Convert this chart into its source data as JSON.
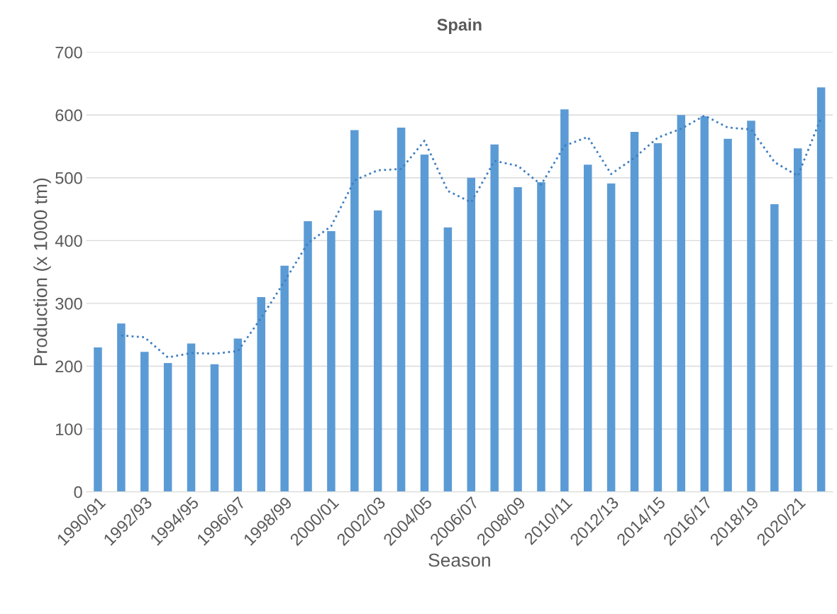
{
  "chart_data": {
    "type": "bar",
    "title": "Spain",
    "xlabel": "Season",
    "ylabel": "Production (x 1000 tm)",
    "categories": [
      "1990/91",
      null,
      "1992/93",
      null,
      "1994/95",
      null,
      "1996/97",
      null,
      "1998/99",
      null,
      "2000/01",
      null,
      "2002/03",
      null,
      "2004/05",
      null,
      "2006/07",
      null,
      "2008/09",
      null,
      "2010/11",
      null,
      "2012/13",
      null,
      "2014/15",
      null,
      "2016/17",
      null,
      "2018/19",
      null,
      "2020/21",
      null
    ],
    "series": [
      {
        "color": "#5b9bd5",
        "values": [
          230,
          268,
          223,
          205,
          236,
          203,
          244,
          310,
          360,
          431,
          415,
          576,
          448,
          580,
          537,
          421,
          500,
          553,
          485,
          493,
          609,
          521,
          491,
          573,
          555,
          600,
          598,
          562,
          591,
          458,
          547,
          644
        ]
      },
      {
        "type": "line",
        "color": "#3f7fc0",
        "line_style": "dotted",
        "values": [
          null,
          249,
          246,
          214,
          221,
          220,
          224,
          277,
          335,
          396,
          423,
          496,
          512,
          514,
          559,
          479,
          461,
          527,
          519,
          489,
          551,
          565,
          506,
          532,
          564,
          578,
          599,
          580,
          577,
          525,
          503,
          596
        ]
      }
    ],
    "ylim": [
      0,
      700
    ],
    "yticks": [
      0,
      100,
      200,
      300,
      400,
      500,
      600,
      700
    ],
    "grid": "y"
  }
}
